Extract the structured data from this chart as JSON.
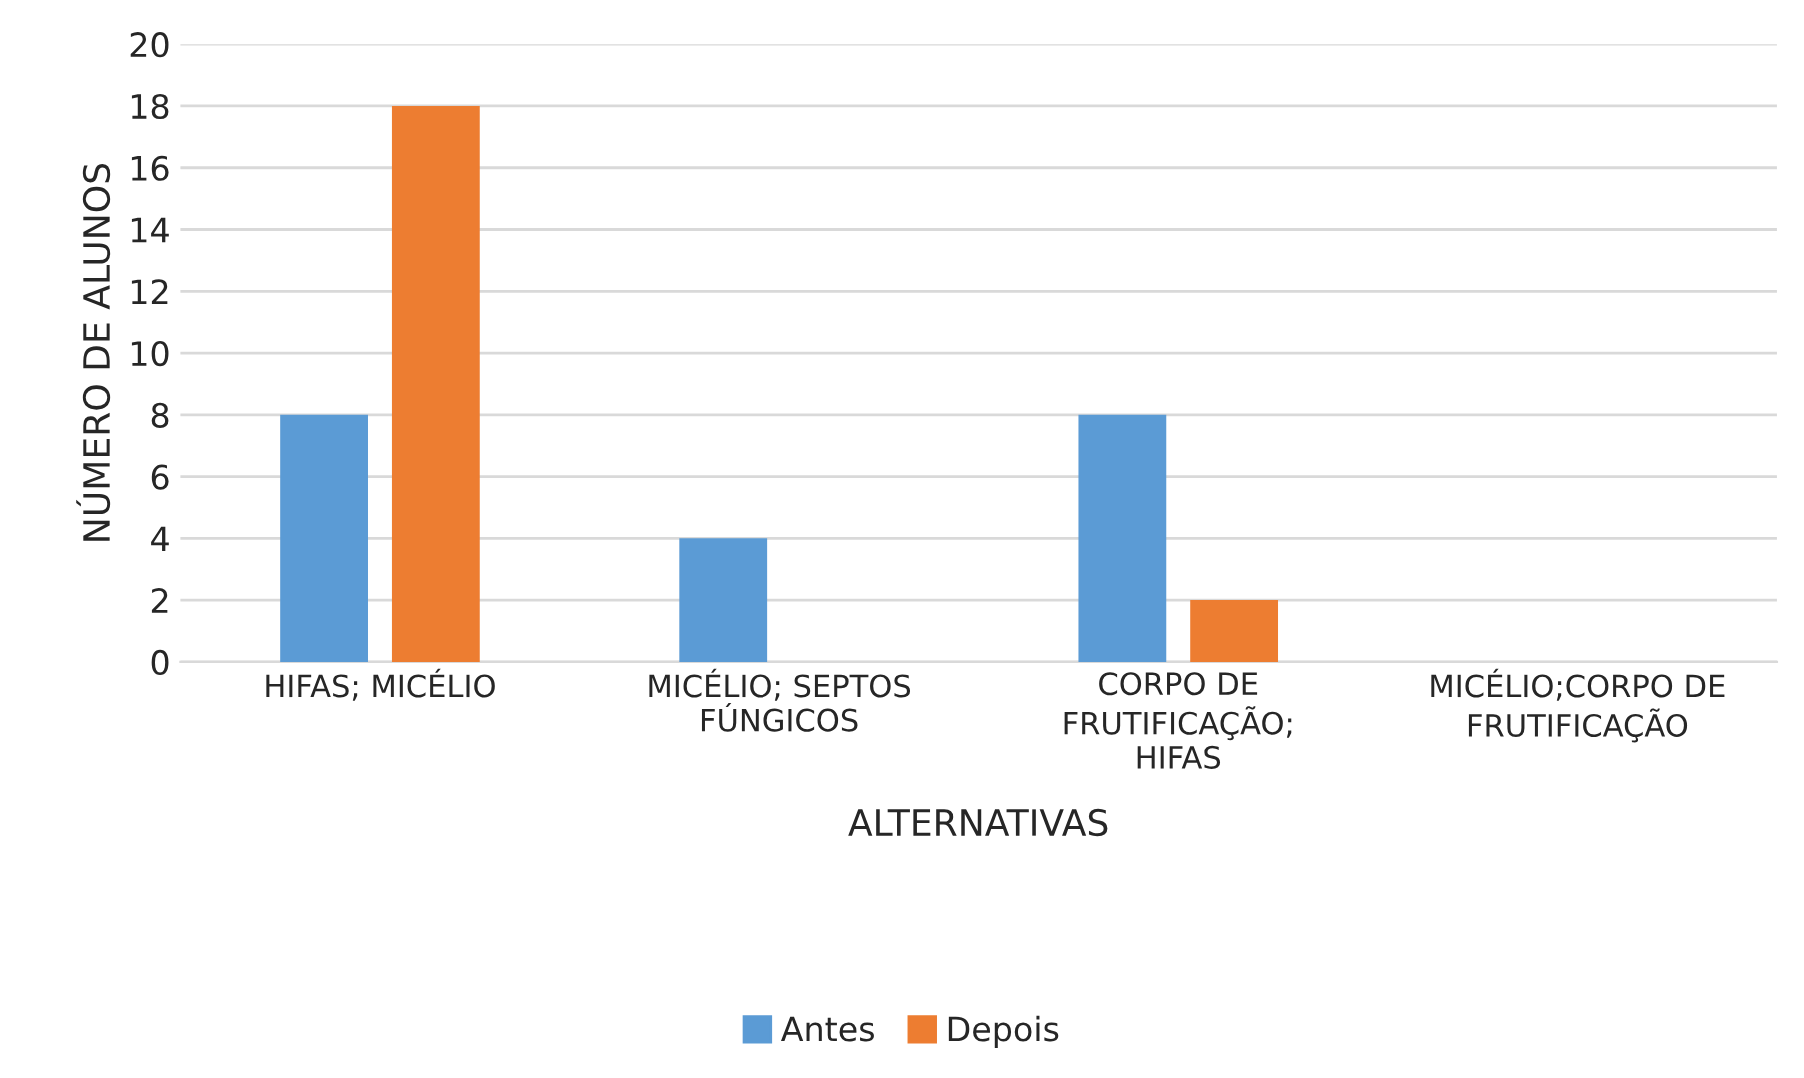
{
  "chart_data": {
    "type": "bar",
    "xlabel": "ALTERNATIVAS",
    "ylabel": "NÚMERO DE ALUNOS",
    "categories": [
      "HIFAS; MICÉLIO",
      "MICÉLIO; SEPTOS\nFÚNGICOS",
      "CORPO DE\nFRUTIFICAÇÃO;\nHIFAS",
      "MICÉLIO;CORPO DE\nFRUTIFICAÇÃO"
    ],
    "series": [
      {
        "name": "Antes",
        "color": "#5b9bd5",
        "values": [
          8,
          4,
          8,
          0
        ]
      },
      {
        "name": "Depois",
        "color": "#ed7d31",
        "values": [
          18,
          0,
          2,
          0
        ]
      }
    ],
    "ylim": [
      0,
      20
    ],
    "yticks": [
      0,
      2,
      4,
      6,
      8,
      10,
      12,
      14,
      16,
      18,
      20
    ],
    "grid": "y",
    "legend": "bottom"
  }
}
